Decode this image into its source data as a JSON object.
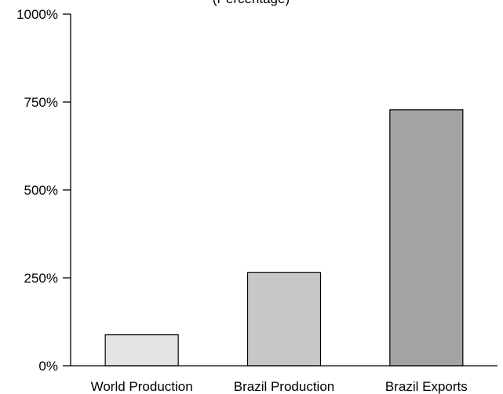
{
  "chart_data": {
    "type": "bar",
    "title": "(Percentage)",
    "categories": [
      "World Production",
      "Brazil Production",
      "Brazil Exports"
    ],
    "values": [
      88,
      265,
      728
    ],
    "colors": [
      "#e4e4e4",
      "#c8c8c8",
      "#a3a3a3"
    ],
    "yticks": [
      0,
      250,
      500,
      750,
      1000
    ],
    "ytick_labels": [
      "0%",
      "250%",
      "500%",
      "750%",
      "1000%"
    ],
    "ylim": [
      0,
      1000
    ],
    "xlabel": "",
    "ylabel": "",
    "grid": false,
    "legend": false
  }
}
